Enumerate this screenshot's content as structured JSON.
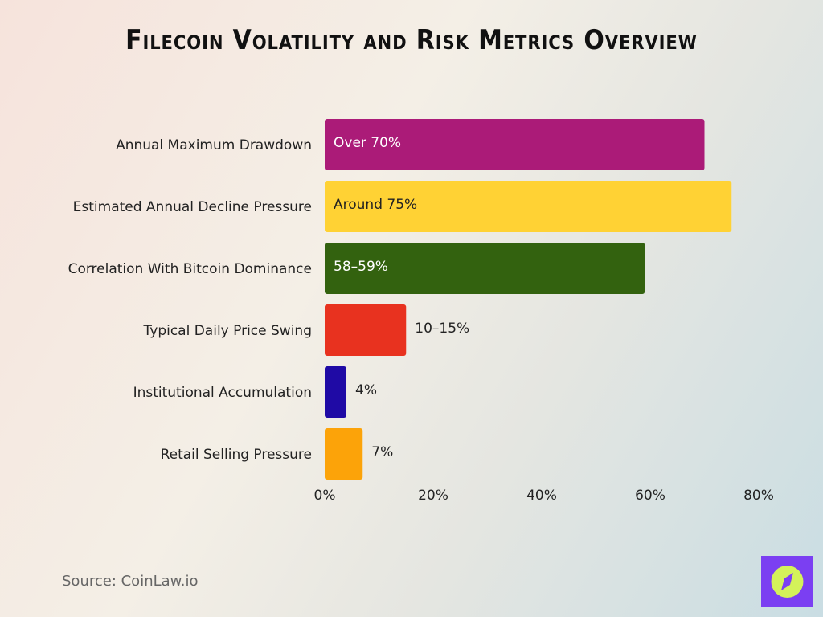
{
  "chart_data": {
    "type": "bar",
    "orientation": "horizontal",
    "title": "Filecoin Volatility and Risk Metrics Overview",
    "categories": [
      "Annual Maximum Drawdown",
      "Estimated Annual Decline Pressure",
      "Correlation With Bitcoin Dominance",
      "Typical Daily Price Swing",
      "Institutional Accumulation",
      "Retail Selling Pressure"
    ],
    "values": [
      70,
      75,
      59,
      15,
      4,
      7
    ],
    "data_labels": [
      "Over 70%",
      "Around 75%",
      "58–59%",
      "10–15%",
      "4%",
      "7%"
    ],
    "colors": [
      "#ab1b78",
      "#ffd234",
      "#33620f",
      "#e8321f",
      "#1f0aa5",
      "#fca309"
    ],
    "label_colors": [
      "#ffffff",
      "#222222",
      "#ffffff",
      "#222222",
      "#222222",
      "#222222"
    ],
    "xlim": [
      0,
      80
    ],
    "xticks": [
      "0%",
      "20%",
      "40%",
      "60%",
      "80%"
    ],
    "grid": false,
    "legend": "none"
  },
  "source": "Source: CoinLaw.io",
  "logo": {
    "icon": "compass-icon",
    "bg": "#7b3ff2",
    "fg": "#d4f25a"
  }
}
